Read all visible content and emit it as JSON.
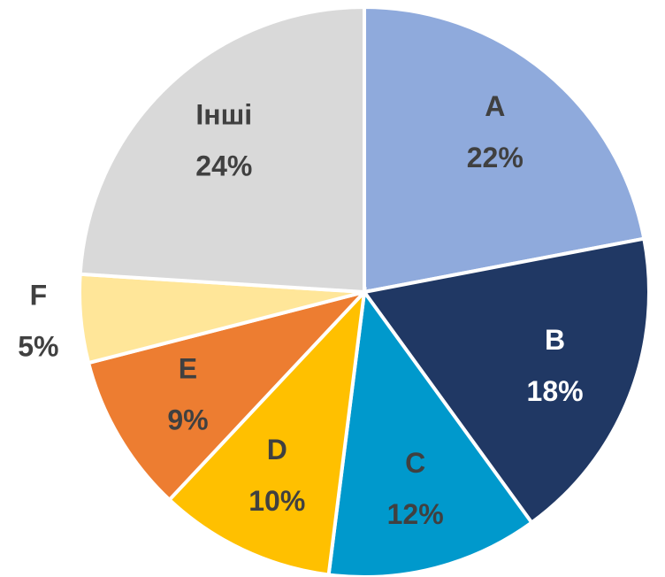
{
  "chart_data": {
    "type": "pie",
    "categories": [
      "A",
      "B",
      "C",
      "D",
      "E",
      "F",
      "Інші"
    ],
    "values": [
      22,
      18,
      12,
      10,
      9,
      5,
      24
    ],
    "value_labels": [
      "22%",
      "18%",
      "12%",
      "10%",
      "9%",
      "5%",
      "24%"
    ],
    "colors": [
      "#8FAADC",
      "#203864",
      "#0099CC",
      "#FFC000",
      "#ED7D31",
      "#FFE699",
      "#D9D9D9"
    ]
  }
}
